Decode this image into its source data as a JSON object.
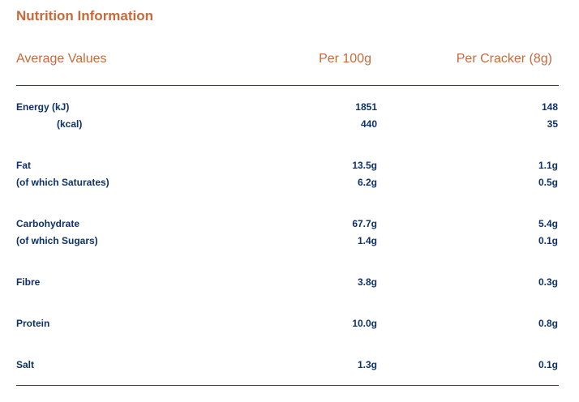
{
  "title": "Nutrition Information",
  "header": {
    "label": "Average Values",
    "per_100g": "Per 100g",
    "per_unit": "Per Cracker (8g)"
  },
  "rows": [
    {
      "label": "Energy (kJ)",
      "per_100g": "1851",
      "per_unit": "148"
    },
    {
      "label": "(kcal)",
      "per_100g": "440",
      "per_unit": "35"
    },
    {
      "label": "Fat",
      "per_100g": "13.5g",
      "per_unit": "1.1g"
    },
    {
      "label": "(of which Saturates)",
      "per_100g": "6.2g",
      "per_unit": "0.5g"
    },
    {
      "label": "Carbohydrate",
      "per_100g": "67.7g",
      "per_unit": "5.4g"
    },
    {
      "label": "(of which Sugars)",
      "per_100g": "1.4g",
      "per_unit": "0.1g"
    },
    {
      "label": "Fibre",
      "per_100g": "3.8g",
      "per_unit": "0.3g"
    },
    {
      "label": "Protein",
      "per_100g": "10.0g",
      "per_unit": "0.8g"
    },
    {
      "label": "Salt",
      "per_100g": "1.3g",
      "per_unit": "0.1g"
    }
  ],
  "colors": {
    "accent": "#c8693a",
    "text": "#0d3268",
    "rule": "#2c3e63"
  }
}
